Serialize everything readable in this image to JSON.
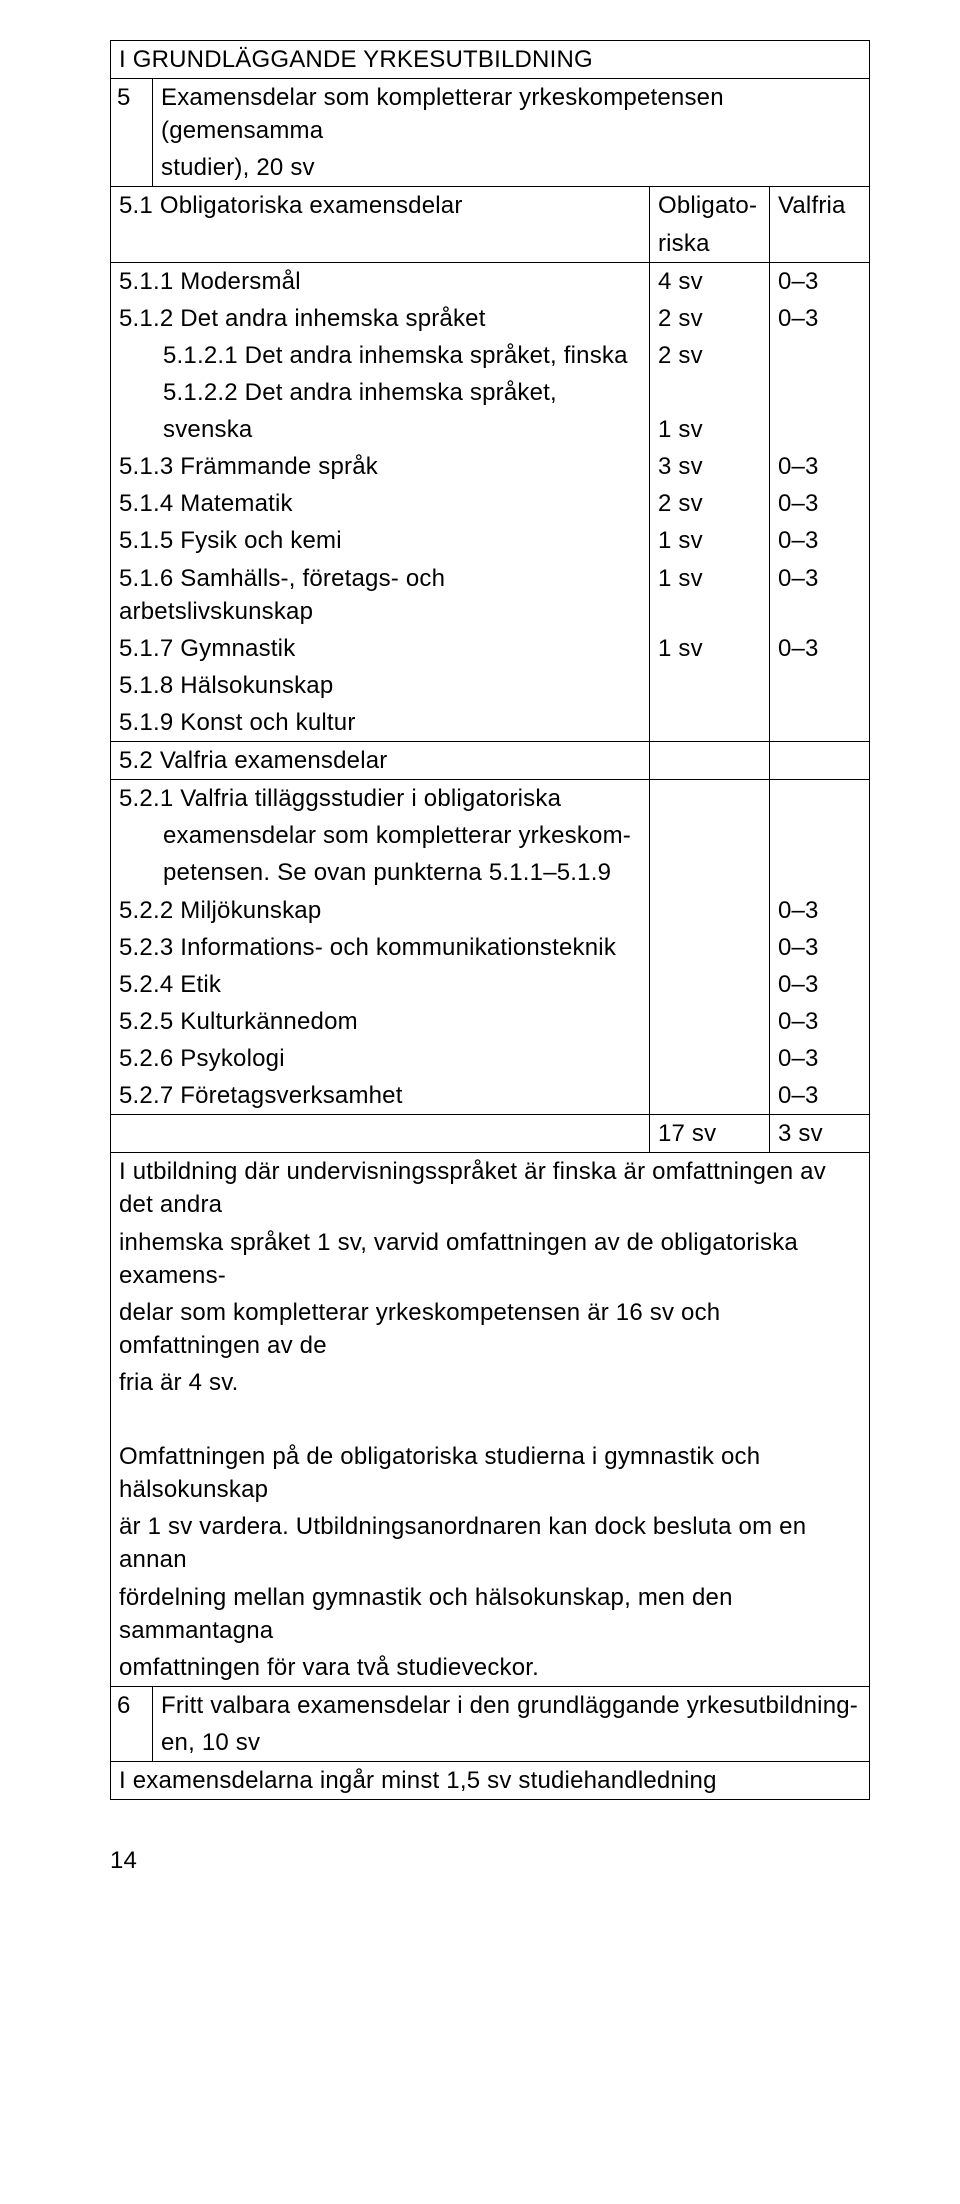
{
  "table": {
    "section_heading_upper": "I GRUNDLÄGGANDE YRKESUTBILDNING",
    "row5": {
      "num": "5",
      "text1": "Examensdelar som kompletterar yrkeskompetensen (gemensamma",
      "text2": "studier), 20 sv"
    },
    "row51": {
      "text": "5.1 Obligatoriska examensdelar",
      "col_oblig1": "Obligato-",
      "col_oblig2": "riska",
      "col_valf": "Valfria"
    },
    "r511": {
      "text": "5.1.1 Modersmål",
      "oblig": "4 sv",
      "valf": "0–3"
    },
    "r512": {
      "text": "5.1.2 Det andra inhemska språket",
      "oblig": "2 sv",
      "valf": "0–3"
    },
    "r5121": {
      "text": "5.1.2.1 Det andra inhemska språket, finska",
      "oblig": "2 sv"
    },
    "r5122a": {
      "text": "5.1.2.2 Det andra inhemska språket,"
    },
    "r5122b": {
      "text": "svenska",
      "oblig": "1 sv"
    },
    "r513": {
      "text": "5.1.3 Främmande språk",
      "oblig": "3 sv",
      "valf": "0–3"
    },
    "r514": {
      "text": "5.1.4 Matematik",
      "oblig": "2 sv",
      "valf": "0–3"
    },
    "r515": {
      "text": "5.1.5 Fysik och kemi",
      "oblig": "1 sv",
      "valf": "0–3"
    },
    "r516": {
      "text": "5.1.6 Samhälls-, företags- och arbetslivskunskap",
      "oblig": "1 sv",
      "valf": "0–3"
    },
    "r517": {
      "text": "5.1.7 Gymnastik",
      "oblig": "1 sv",
      "valf": "0–3"
    },
    "r518": {
      "text": "5.1.8 Hälsokunskap"
    },
    "r519": {
      "text": "5.1.9 Konst och kultur"
    },
    "row52": {
      "text": "5.2 Valfria examensdelar"
    },
    "r521a": {
      "text": "5.2.1 Valfria tilläggsstudier i obligatoriska"
    },
    "r521b": {
      "text": "examensdelar som kompletterar yrkeskom-"
    },
    "r521c": {
      "text": "petensen. Se ovan punkterna 5.1.1–5.1.9"
    },
    "r522": {
      "text": "5.2.2 Miljökunskap",
      "valf": "0–3"
    },
    "r523": {
      "text": "5.2.3 Informations- och kommunikationsteknik",
      "valf": "0–3"
    },
    "r524": {
      "text": "5.2.4 Etik",
      "valf": "0–3"
    },
    "r525": {
      "text": "5.2.5 Kulturkännedom",
      "valf": "0–3"
    },
    "r526": {
      "text": "5.2.6 Psykologi",
      "valf": "0–3"
    },
    "r527": {
      "text": "5.2.7 Företagsverksamhet",
      "valf": "0–3"
    },
    "totals": {
      "oblig": "17 sv",
      "valf": "3 sv"
    },
    "para1": {
      "l1": "I utbildning där undervisningsspråket är finska är omfattningen av det andra",
      "l2": "inhemska språket 1 sv, varvid omfattningen av de obligatoriska examens-",
      "l3": "delar som kompletterar yrkeskompetensen är 16 sv och omfattningen av de",
      "l4": "fria är 4 sv."
    },
    "para2": {
      "l1": "Omfattningen på de obligatoriska studierna i gymnastik och hälsokunskap",
      "l2": "är 1 sv vardera. Utbildningsanordnaren kan dock besluta om en annan",
      "l3": "fördelning mellan gymnastik och hälsokunskap, men den sammantagna",
      "l4": "omfattningen för vara två studieveckor."
    },
    "row6": {
      "num": "6",
      "text1": "Fritt valbara examensdelar i den grundläggande yrkesutbildning-",
      "text2": "en, 10 sv"
    },
    "footer": "I examensdelarna ingår minst 1,5 sv studiehandledning"
  },
  "page_number": "14"
}
